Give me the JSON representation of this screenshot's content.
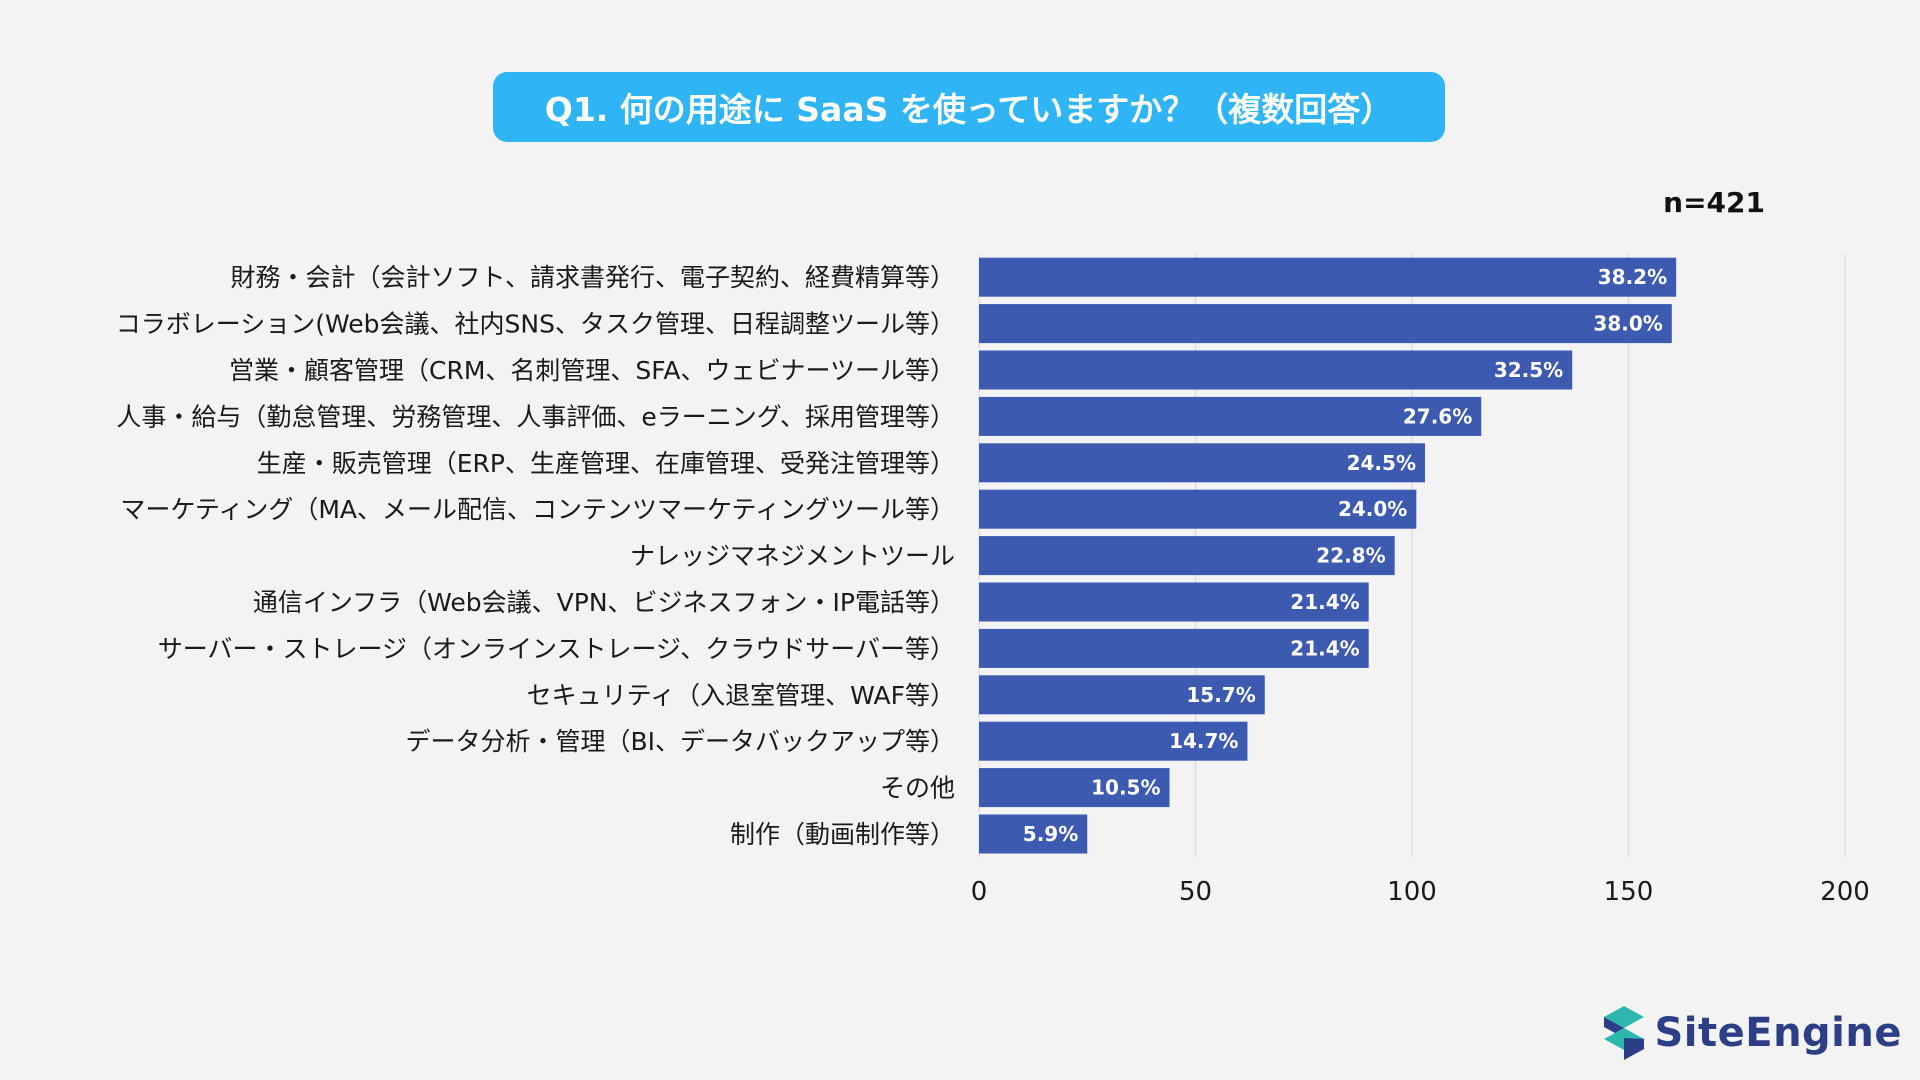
{
  "title": "Q1. 何の用途に SaaS を使っていますか？（複数回答）",
  "n_label": "n=421",
  "logo": {
    "text": "SiteEngine",
    "icon": "site-engine-logo-icon"
  },
  "colors": {
    "bar": "#3d5ab1",
    "title_bg": "#2fb4f6",
    "grid": "#d9d9d9"
  },
  "chart_data": {
    "type": "bar",
    "orientation": "horizontal",
    "categories": [
      "財務・会計（会計ソフト、請求書発行、電子契約、経費精算等）",
      "コラボレーション(Web会議、社内SNS、タスク管理、日程調整ツール等）",
      "営業・顧客管理（CRM、名刺管理、SFA、ウェビナーツール等）",
      "人事・給与（勤怠管理、労務管理、人事評価、eラーニング、採用管理等）",
      "生産・販売管理（ERP、生産管理、在庫管理、受発注管理等）",
      "マーケティング（MA、メール配信、コンテンツマーケティングツール等）",
      "ナレッジマネジメントツール",
      "通信インフラ（Web会議、VPN、ビジネスフォン・IP電話等）",
      "サーバー・ストレージ（オンラインストレージ、クラウドサーバー等）",
      "セキュリティ（入退室管理、WAF等）",
      "データ分析・管理（BI、データバックアップ等）",
      "その他",
      "制作（動画制作等）"
    ],
    "values": [
      161,
      160,
      137,
      116,
      103,
      101,
      96,
      90,
      90,
      66,
      62,
      44,
      25
    ],
    "value_labels": [
      "38.2%",
      "38.0%",
      "32.5%",
      "27.6%",
      "24.5%",
      "24.0%",
      "22.8%",
      "21.4%",
      "21.4%",
      "15.7%",
      "14.7%",
      "10.5%",
      "5.9%"
    ],
    "xlim": [
      0,
      200
    ],
    "xticks": [
      "0",
      "50",
      "100",
      "150",
      "200"
    ],
    "grid": "vertical",
    "legend": "none"
  }
}
